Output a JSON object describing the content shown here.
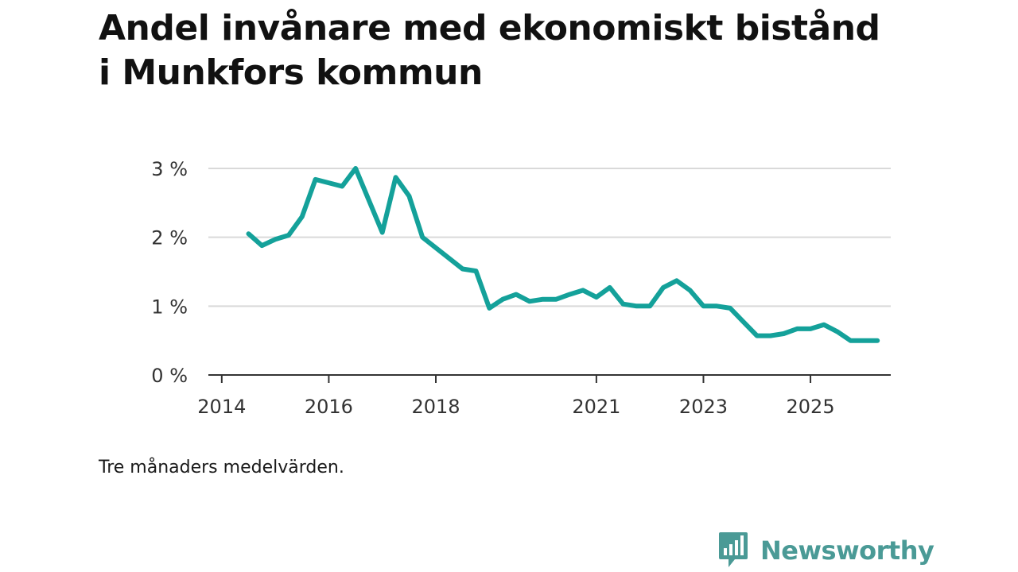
{
  "title": "Andel invånare med ekonomiskt bistånd i Munkfors kommun",
  "note": "Tre månaders medelvärden.",
  "brand": {
    "name": "Newsworthy",
    "logo_icon": "bar-chart-speech-bubble-icon",
    "color": "#4a9a96"
  },
  "chart_data": {
    "type": "line",
    "title": "Andel invånare med ekonomiskt bistånd i Munkfors kommun",
    "xlabel": "",
    "ylabel": "",
    "line_color": "#14a19a",
    "grid": true,
    "ylim": [
      0,
      3
    ],
    "xlim": [
      2013.75,
      2026.5
    ],
    "yticks": [
      {
        "value": 0,
        "label": "0 %"
      },
      {
        "value": 1,
        "label": "1 %"
      },
      {
        "value": 2,
        "label": "2 %"
      },
      {
        "value": 3,
        "label": "3 %"
      }
    ],
    "xticks": [
      {
        "value": 2014,
        "label": "2014"
      },
      {
        "value": 2016,
        "label": "2016"
      },
      {
        "value": 2018,
        "label": "2018"
      },
      {
        "value": 2021,
        "label": "2021"
      },
      {
        "value": 2023,
        "label": "2023"
      },
      {
        "value": 2025,
        "label": "2025"
      }
    ],
    "series": [
      {
        "name": "",
        "x": [
          2014.5,
          2014.75,
          2015.0,
          2015.25,
          2015.5,
          2015.75,
          2016.25,
          2016.5,
          2017.0,
          2017.25,
          2017.5,
          2017.75,
          2018.5,
          2018.75,
          2019.0,
          2019.25,
          2019.5,
          2019.75,
          2020.0,
          2020.25,
          2020.5,
          2020.75,
          2021.0,
          2021.25,
          2021.5,
          2021.75,
          2022.0,
          2022.25,
          2022.5,
          2022.75,
          2023.0,
          2023.25,
          2023.5,
          2023.75,
          2024.0,
          2024.25,
          2024.5,
          2024.75,
          2025.0,
          2025.25,
          2025.5,
          2025.75,
          2026.0,
          2026.25
        ],
        "values": [
          2.05,
          1.88,
          1.97,
          2.03,
          2.3,
          2.84,
          2.74,
          3.0,
          2.07,
          2.87,
          2.6,
          2.0,
          1.54,
          1.51,
          0.97,
          1.1,
          1.17,
          1.07,
          1.1,
          1.1,
          1.17,
          1.23,
          1.13,
          1.27,
          1.03,
          1.0,
          1.0,
          1.27,
          1.37,
          1.23,
          1.0,
          1.0,
          0.97,
          0.77,
          0.57,
          0.57,
          0.6,
          0.67,
          0.67,
          0.73,
          0.63,
          0.5,
          0.5,
          0.5
        ]
      }
    ]
  }
}
